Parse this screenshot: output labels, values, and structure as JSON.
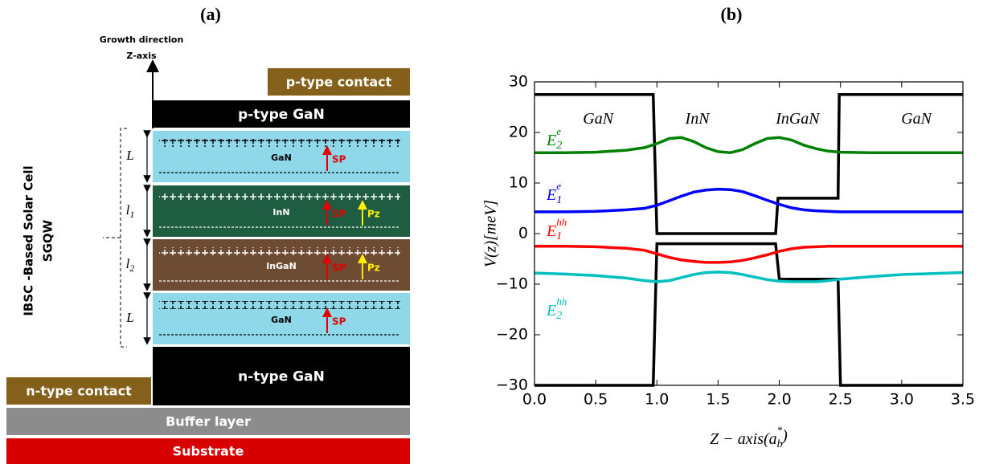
{
  "diagram": {
    "panel_label": "(a)",
    "growth_axis": [
      "Growth direction",
      "Z-axis"
    ],
    "cell_label": [
      "IBSC -Based Solar Cell",
      "SGQW"
    ],
    "p_contact": "p-type contact",
    "p_layer": "p-type GaN",
    "wells": [
      {
        "name": "GaN",
        "thickness": {
          "base": "L"
        },
        "fields": [
          "SP"
        ]
      },
      {
        "name": "InN",
        "thickness": {
          "base": "l",
          "sub": "1"
        },
        "fields": [
          "SP",
          "Pz"
        ]
      },
      {
        "name": "InGaN",
        "thickness": {
          "base": "l",
          "sub": "2"
        },
        "fields": [
          "SP",
          "Pz"
        ]
      },
      {
        "name": "GaN",
        "thickness": {
          "base": "L"
        },
        "fields": [
          "SP"
        ]
      }
    ],
    "n_layer": "n-type GaN",
    "n_contact": "n-type contact",
    "buffer": "Buffer layer",
    "substrate": "Substrate"
  },
  "chart_data": {
    "type": "line",
    "panel_label": "(b)",
    "y_label": "V(z)[meV]",
    "x_label": {
      "base": "Z − axis(a",
      "sub": "b",
      "sup": "*",
      "end": ")"
    },
    "xlim": [
      0,
      3.5
    ],
    "ylim": [
      -30,
      30
    ],
    "xticks": [
      {
        "value": 0,
        "label": "0.0"
      },
      {
        "value": 0.5,
        "label": "0.5"
      },
      {
        "value": 1,
        "label": "1.0"
      },
      {
        "value": 1.5,
        "label": "1.5"
      },
      {
        "value": 2,
        "label": "2.0"
      },
      {
        "value": 2.5,
        "label": "2.5"
      },
      {
        "value": 3,
        "label": "3.0"
      },
      {
        "value": 3.5,
        "label": "3.5"
      }
    ],
    "yticks": [
      {
        "value": -30,
        "label": "−30"
      },
      {
        "value": -20,
        "label": "−20"
      },
      {
        "value": -10,
        "label": "−10"
      },
      0,
      10,
      20,
      30
    ],
    "annotations": [
      "GaN",
      "InN",
      "InGaN",
      "GaN"
    ],
    "series": [
      {
        "color": "#000000",
        "x": [
          0,
          0.97,
          1.0,
          1.97,
          1.99,
          2.48,
          2.49,
          3.5
        ],
        "values": [
          27.5,
          27.5,
          0,
          0,
          7,
          7,
          27.5,
          27.5
        ]
      },
      {
        "color": "#000000",
        "x": [
          0,
          0.97,
          1.0,
          1.97,
          2.0,
          2.48,
          2.5,
          3.5
        ],
        "values": [
          -30,
          -30,
          -2,
          -2,
          -9,
          -9,
          -30,
          -30
        ]
      },
      {
        "label": {
          "base": "E",
          "sub": "2",
          "sup": "e"
        },
        "color": "#008000",
        "x": [
          0,
          0.25,
          0.5,
          0.75,
          0.9,
          1.0,
          1.1,
          1.2,
          1.3,
          1.4,
          1.5,
          1.6,
          1.7,
          1.8,
          1.9,
          2.0,
          2.1,
          2.2,
          2.3,
          2.4,
          2.5,
          2.75,
          3.0,
          3.25,
          3.5
        ],
        "values": [
          16,
          16,
          16.1,
          16.5,
          17,
          17.8,
          18.8,
          19,
          18.2,
          17,
          16.2,
          16,
          16.6,
          17.8,
          18.8,
          19,
          18.5,
          17.5,
          16.8,
          16.3,
          16.1,
          16,
          16,
          16,
          16
        ]
      },
      {
        "label": {
          "base": "E",
          "sub": "1",
          "sup": "e"
        },
        "color": "#0000ff",
        "x": [
          0,
          0.25,
          0.5,
          0.75,
          0.9,
          1.0,
          1.1,
          1.2,
          1.3,
          1.4,
          1.5,
          1.6,
          1.7,
          1.8,
          1.9,
          2.0,
          2.1,
          2.2,
          2.3,
          2.4,
          2.5,
          2.75,
          3.0,
          3.25,
          3.5
        ],
        "values": [
          4.3,
          4.3,
          4.4,
          4.7,
          5.0,
          5.6,
          6.5,
          7.4,
          8.2,
          8.6,
          8.8,
          8.7,
          8.3,
          7.5,
          6.6,
          5.8,
          5.1,
          4.7,
          4.5,
          4.4,
          4.3,
          4.3,
          4.3,
          4.3,
          4.3
        ]
      },
      {
        "label": {
          "base": "E",
          "sub": "1",
          "sup": "hh"
        },
        "color": "#ff0000",
        "x": [
          0,
          0.25,
          0.5,
          0.75,
          0.9,
          1.0,
          1.1,
          1.2,
          1.3,
          1.4,
          1.5,
          1.6,
          1.7,
          1.8,
          1.9,
          2.0,
          2.1,
          2.2,
          2.3,
          2.4,
          2.5,
          2.75,
          3.0,
          3.25,
          3.5
        ],
        "values": [
          -2.5,
          -2.5,
          -2.6,
          -2.9,
          -3.3,
          -4.0,
          -4.7,
          -5.2,
          -5.5,
          -5.7,
          -5.7,
          -5.6,
          -5.3,
          -4.8,
          -4.2,
          -3.5,
          -3.0,
          -2.7,
          -2.6,
          -2.5,
          -2.5,
          -2.5,
          -2.5,
          -2.5,
          -2.5
        ]
      },
      {
        "label": {
          "base": "E",
          "sub": "2",
          "sup": "hh"
        },
        "color": "#00bfbf",
        "x": [
          0,
          0.25,
          0.5,
          0.75,
          0.9,
          1.0,
          1.1,
          1.2,
          1.3,
          1.4,
          1.5,
          1.6,
          1.7,
          1.8,
          1.9,
          2.0,
          2.1,
          2.2,
          2.3,
          2.4,
          2.5,
          2.75,
          3.0,
          3.25,
          3.5
        ],
        "values": [
          -7.8,
          -8,
          -8.3,
          -8.8,
          -9.3,
          -9.5,
          -9.3,
          -8.7,
          -8.1,
          -7.7,
          -7.6,
          -7.7,
          -8.1,
          -8.6,
          -9.1,
          -9.4,
          -9.5,
          -9.5,
          -9.5,
          -9.3,
          -9,
          -8.5,
          -8.1,
          -7.9,
          -7.7
        ]
      }
    ]
  }
}
